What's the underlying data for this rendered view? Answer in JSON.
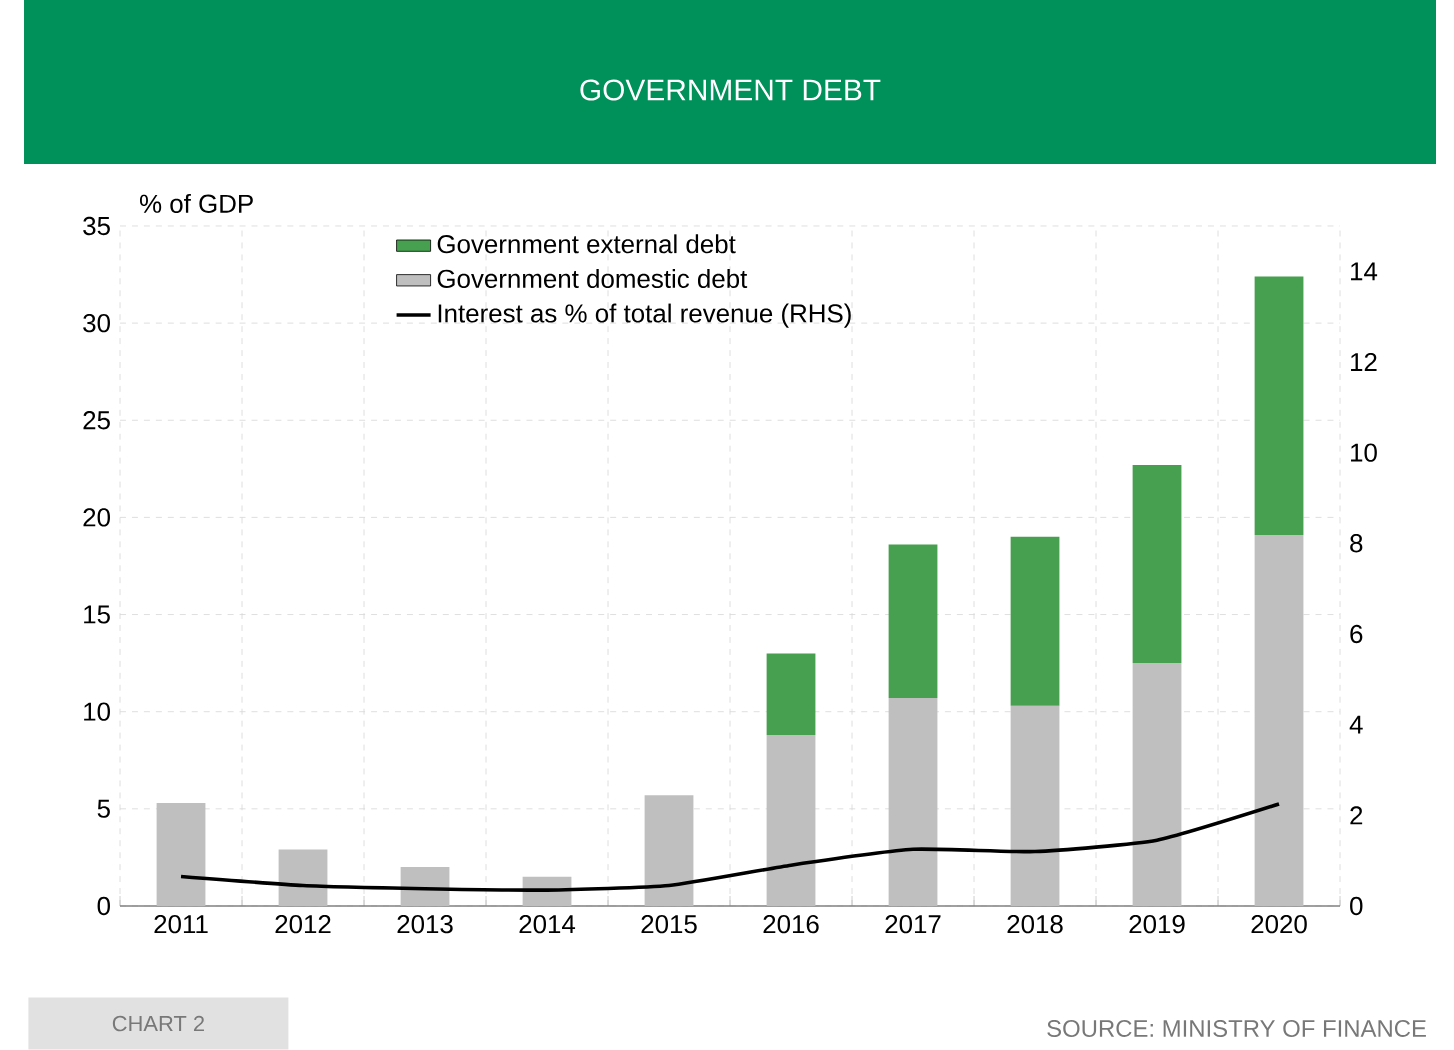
{
  "chart_data": {
    "type": "bar",
    "title": "GOVERNMENT DEBT",
    "ylabel": "% of GDP",
    "categories": [
      "2011",
      "2012",
      "2013",
      "2014",
      "2015",
      "2016",
      "2017",
      "2018",
      "2019",
      "2020"
    ],
    "stacked": true,
    "grid": true,
    "legend": "top",
    "ylim": [
      0,
      35
    ],
    "yticks": [
      0,
      5,
      10,
      15,
      20,
      25,
      30,
      35
    ],
    "y2lim": [
      0,
      15
    ],
    "y2ticks": [
      0,
      2,
      4,
      6,
      8,
      10,
      12,
      14
    ],
    "series": [
      {
        "name": "Government domestic debt",
        "color": "#bfbfbf",
        "values": [
          5.3,
          2.9,
          2.0,
          1.5,
          5.7,
          8.8,
          10.7,
          10.3,
          12.5,
          19.1
        ]
      },
      {
        "name": "Government external debt",
        "color": "#47a04f",
        "values": [
          null,
          null,
          null,
          null,
          null,
          4.2,
          7.9,
          8.7,
          10.2,
          13.3
        ]
      },
      {
        "name": "Interest as % of total revenue (RHS)",
        "type": "line",
        "axis": "y2",
        "color": "#000000",
        "values": [
          0.65,
          0.45,
          0.38,
          0.35,
          0.45,
          0.9,
          1.25,
          1.2,
          1.45,
          2.25
        ]
      }
    ],
    "annotations": [
      "CHART 2",
      "SOURCE: MINISTRY OF FINANCE"
    ]
  }
}
